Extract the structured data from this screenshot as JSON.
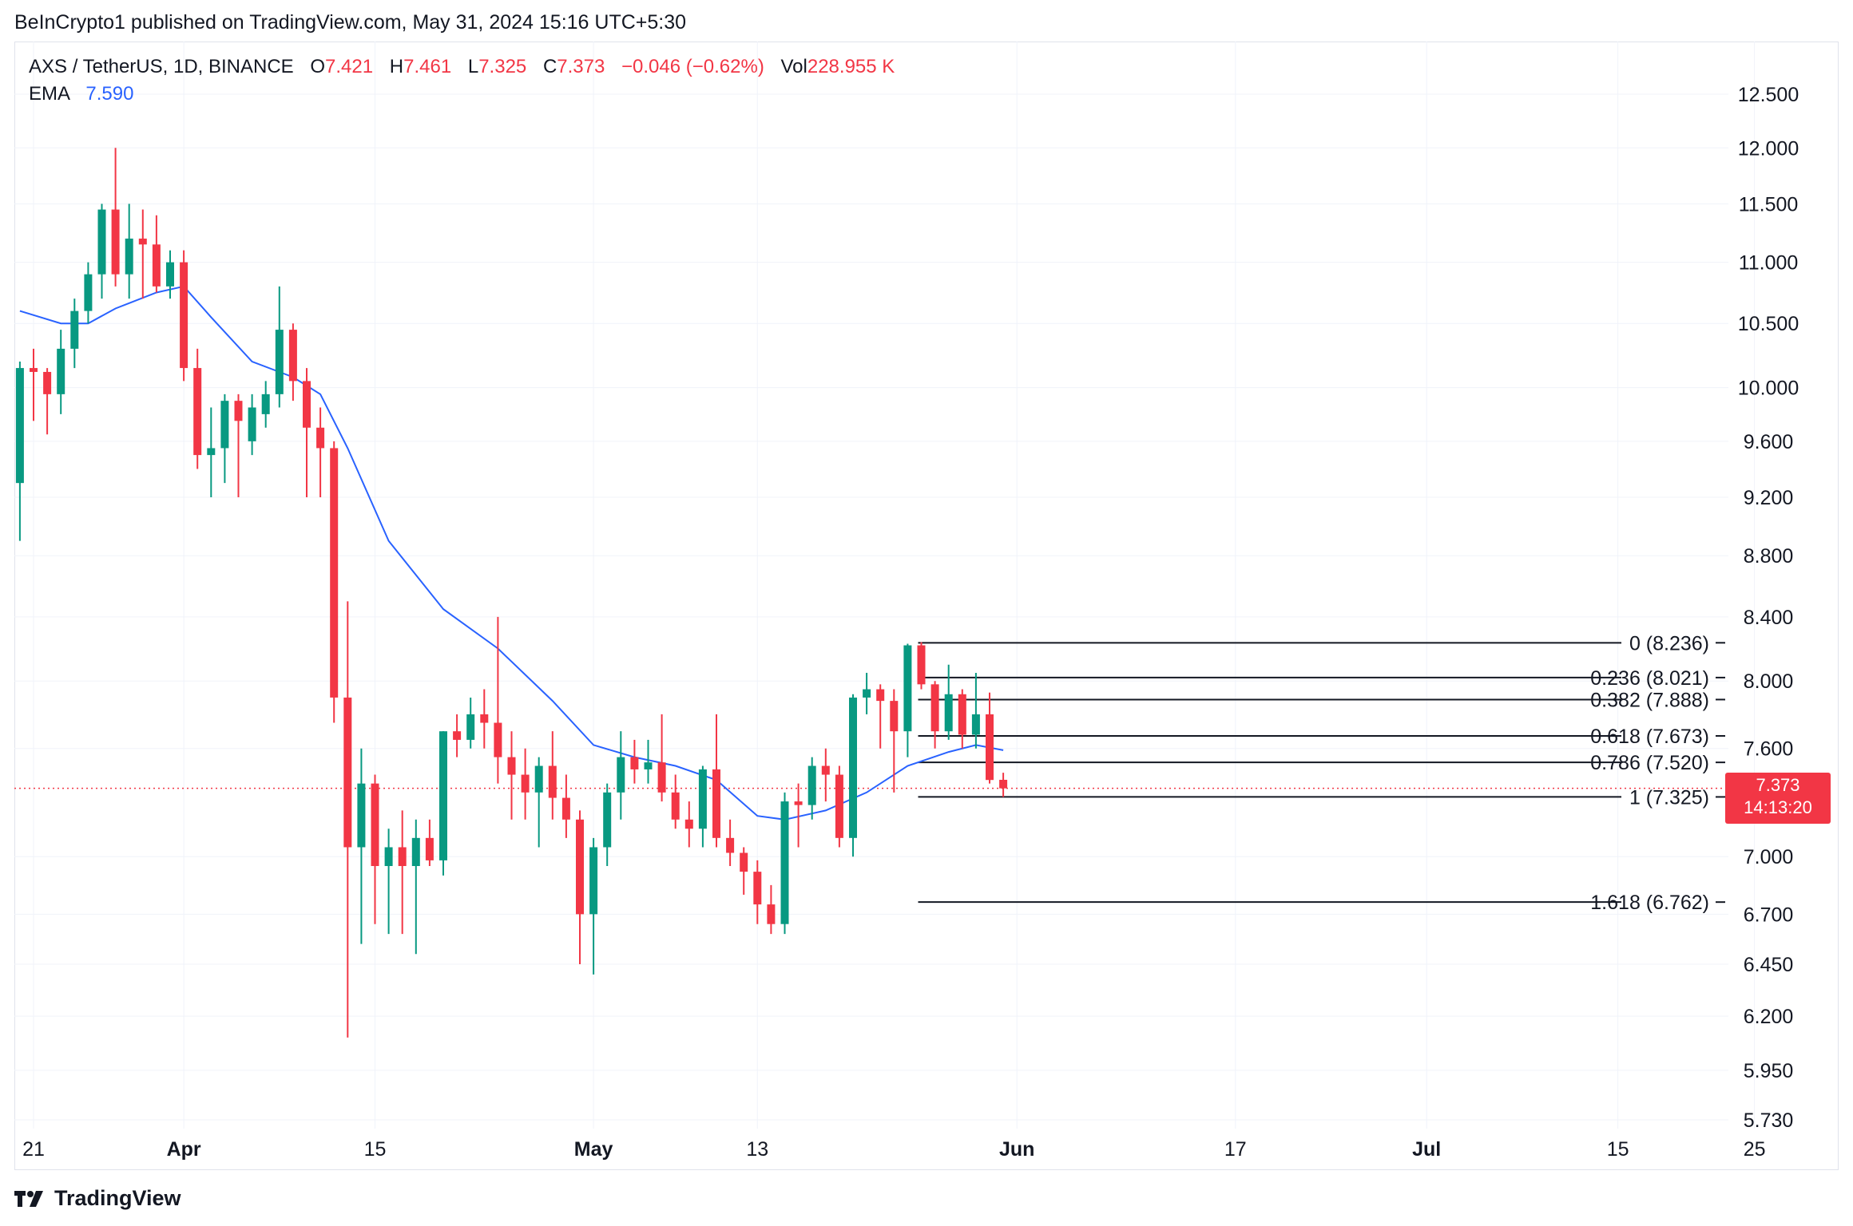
{
  "header": {
    "publisher_line": "BeInCrypto1 published on TradingView.com, May 31, 2024 15:16 UTC+5:30"
  },
  "legend": {
    "symbol": "AXS / TetherUS, 1D, BINANCE",
    "open_label": "O",
    "open_value": "7.421",
    "high_label": "H",
    "high_value": "7.461",
    "low_label": "L",
    "low_value": "7.325",
    "close_label": "C",
    "close_value": "7.373",
    "change": "−0.046 (−0.62%)",
    "vol_label": "Vol",
    "vol_value": "228.955 K",
    "ema_label": "EMA",
    "ema_value": "7.590"
  },
  "price_badge": {
    "price": "7.373",
    "countdown": "14:13:20"
  },
  "footer": {
    "brand": "TradingView"
  },
  "colors": {
    "up": "#089981",
    "down": "#f23645",
    "ema": "#2962ff",
    "grid": "#f0f3fa",
    "fib": "#131722"
  },
  "chart_data": {
    "type": "candlestick",
    "title": "AXS / TetherUS, 1D, BINANCE",
    "y_scale": "log",
    "y_ticks": [
      12.5,
      12.0,
      11.5,
      11.0,
      10.5,
      10.0,
      9.6,
      9.2,
      8.8,
      8.4,
      8.0,
      7.6,
      7.373,
      7.0,
      6.7,
      6.45,
      6.2,
      5.95,
      5.73
    ],
    "y_tick_labels": [
      "12.500",
      "12.000",
      "11.500",
      "11.000",
      "10.500",
      "10.000",
      "9.600",
      "9.200",
      "8.800",
      "8.400",
      "8.000",
      "7.600",
      "",
      "7.000",
      "6.700",
      "6.450",
      "6.200",
      "5.950",
      "5.730"
    ],
    "x_ticks": [
      {
        "date": "2024-03-21",
        "label": "21"
      },
      {
        "date": "2024-04-01",
        "label": "Apr"
      },
      {
        "date": "2024-04-15",
        "label": "15"
      },
      {
        "date": "2024-05-01",
        "label": "May"
      },
      {
        "date": "2024-05-13",
        "label": "13"
      },
      {
        "date": "2024-06-01",
        "label": "Jun"
      },
      {
        "date": "2024-06-17",
        "label": "17"
      },
      {
        "date": "2024-07-01",
        "label": "Jul"
      },
      {
        "date": "2024-07-15",
        "label": "15"
      },
      {
        "date": "2024-07-25",
        "label": "25"
      }
    ],
    "x_range": [
      "2024-03-20",
      "2024-07-28"
    ],
    "candles": [
      {
        "date": "2024-03-20",
        "o": 9.3,
        "h": 10.2,
        "l": 8.9,
        "c": 10.15
      },
      {
        "date": "2024-03-21",
        "o": 10.15,
        "h": 10.3,
        "l": 9.75,
        "c": 10.12
      },
      {
        "date": "2024-03-22",
        "o": 10.12,
        "h": 10.15,
        "l": 9.65,
        "c": 9.95
      },
      {
        "date": "2024-03-23",
        "o": 9.95,
        "h": 10.45,
        "l": 9.8,
        "c": 10.3
      },
      {
        "date": "2024-03-24",
        "o": 10.3,
        "h": 10.7,
        "l": 10.15,
        "c": 10.6
      },
      {
        "date": "2024-03-25",
        "o": 10.6,
        "h": 11.0,
        "l": 10.5,
        "c": 10.9
      },
      {
        "date": "2024-03-26",
        "o": 10.9,
        "h": 11.5,
        "l": 10.7,
        "c": 11.45
      },
      {
        "date": "2024-03-27",
        "o": 11.45,
        "h": 12.0,
        "l": 10.8,
        "c": 10.9
      },
      {
        "date": "2024-03-28",
        "o": 10.9,
        "h": 11.5,
        "l": 10.7,
        "c": 11.2
      },
      {
        "date": "2024-03-29",
        "o": 11.2,
        "h": 11.45,
        "l": 10.7,
        "c": 11.15
      },
      {
        "date": "2024-03-30",
        "o": 11.15,
        "h": 11.4,
        "l": 10.75,
        "c": 10.8
      },
      {
        "date": "2024-03-31",
        "o": 10.8,
        "h": 11.1,
        "l": 10.7,
        "c": 11.0
      },
      {
        "date": "2024-04-01",
        "o": 11.0,
        "h": 11.1,
        "l": 10.05,
        "c": 10.15
      },
      {
        "date": "2024-04-02",
        "o": 10.15,
        "h": 10.3,
        "l": 9.4,
        "c": 9.5
      },
      {
        "date": "2024-04-03",
        "o": 9.5,
        "h": 9.85,
        "l": 9.2,
        "c": 9.55
      },
      {
        "date": "2024-04-04",
        "o": 9.55,
        "h": 9.95,
        "l": 9.3,
        "c": 9.9
      },
      {
        "date": "2024-04-05",
        "o": 9.9,
        "h": 9.95,
        "l": 9.2,
        "c": 9.75
      },
      {
        "date": "2024-04-06",
        "o": 9.6,
        "h": 9.95,
        "l": 9.5,
        "c": 9.85
      },
      {
        "date": "2024-04-07",
        "o": 9.8,
        "h": 10.05,
        "l": 9.7,
        "c": 9.95
      },
      {
        "date": "2024-04-08",
        "o": 9.95,
        "h": 10.8,
        "l": 9.85,
        "c": 10.45
      },
      {
        "date": "2024-04-09",
        "o": 10.45,
        "h": 10.5,
        "l": 9.9,
        "c": 10.05
      },
      {
        "date": "2024-04-10",
        "o": 10.05,
        "h": 10.15,
        "l": 9.2,
        "c": 9.7
      },
      {
        "date": "2024-04-11",
        "o": 9.7,
        "h": 9.85,
        "l": 9.2,
        "c": 9.55
      },
      {
        "date": "2024-04-12",
        "o": 9.55,
        "h": 9.6,
        "l": 7.75,
        "c": 7.9
      },
      {
        "date": "2024-04-13",
        "o": 7.9,
        "h": 8.5,
        "l": 6.1,
        "c": 7.05
      },
      {
        "date": "2024-04-14",
        "o": 7.05,
        "h": 7.6,
        "l": 6.55,
        "c": 7.4
      },
      {
        "date": "2024-04-15",
        "o": 7.4,
        "h": 7.45,
        "l": 6.65,
        "c": 6.95
      },
      {
        "date": "2024-04-16",
        "o": 6.95,
        "h": 7.15,
        "l": 6.6,
        "c": 7.05
      },
      {
        "date": "2024-04-17",
        "o": 7.05,
        "h": 7.25,
        "l": 6.6,
        "c": 6.95
      },
      {
        "date": "2024-04-18",
        "o": 6.95,
        "h": 7.2,
        "l": 6.5,
        "c": 7.1
      },
      {
        "date": "2024-04-19",
        "o": 7.1,
        "h": 7.2,
        "l": 6.95,
        "c": 6.98
      },
      {
        "date": "2024-04-20",
        "o": 6.98,
        "h": 7.7,
        "l": 6.9,
        "c": 7.7
      },
      {
        "date": "2024-04-21",
        "o": 7.7,
        "h": 7.8,
        "l": 7.55,
        "c": 7.65
      },
      {
        "date": "2024-04-22",
        "o": 7.65,
        "h": 7.9,
        "l": 7.6,
        "c": 7.8
      },
      {
        "date": "2024-04-23",
        "o": 7.8,
        "h": 7.95,
        "l": 7.6,
        "c": 7.75
      },
      {
        "date": "2024-04-24",
        "o": 7.75,
        "h": 8.4,
        "l": 7.4,
        "c": 7.55
      },
      {
        "date": "2024-04-25",
        "o": 7.55,
        "h": 7.7,
        "l": 7.2,
        "c": 7.45
      },
      {
        "date": "2024-04-26",
        "o": 7.45,
        "h": 7.6,
        "l": 7.2,
        "c": 7.35
      },
      {
        "date": "2024-04-27",
        "o": 7.35,
        "h": 7.55,
        "l": 7.05,
        "c": 7.5
      },
      {
        "date": "2024-04-28",
        "o": 7.5,
        "h": 7.7,
        "l": 7.2,
        "c": 7.32
      },
      {
        "date": "2024-04-29",
        "o": 7.32,
        "h": 7.45,
        "l": 7.1,
        "c": 7.2
      },
      {
        "date": "2024-04-30",
        "o": 7.2,
        "h": 7.25,
        "l": 6.45,
        "c": 6.7
      },
      {
        "date": "2024-05-01",
        "o": 6.7,
        "h": 7.1,
        "l": 6.4,
        "c": 7.05
      },
      {
        "date": "2024-05-02",
        "o": 7.05,
        "h": 7.4,
        "l": 6.95,
        "c": 7.35
      },
      {
        "date": "2024-05-03",
        "o": 7.35,
        "h": 7.7,
        "l": 7.2,
        "c": 7.55
      },
      {
        "date": "2024-05-04",
        "o": 7.55,
        "h": 7.65,
        "l": 7.4,
        "c": 7.48
      },
      {
        "date": "2024-05-05",
        "o": 7.48,
        "h": 7.65,
        "l": 7.4,
        "c": 7.52
      },
      {
        "date": "2024-05-06",
        "o": 7.52,
        "h": 7.8,
        "l": 7.3,
        "c": 7.35
      },
      {
        "date": "2024-05-07",
        "o": 7.35,
        "h": 7.45,
        "l": 7.15,
        "c": 7.2
      },
      {
        "date": "2024-05-08",
        "o": 7.2,
        "h": 7.3,
        "l": 7.05,
        "c": 7.15
      },
      {
        "date": "2024-05-09",
        "o": 7.15,
        "h": 7.5,
        "l": 7.05,
        "c": 7.48
      },
      {
        "date": "2024-05-10",
        "o": 7.48,
        "h": 7.8,
        "l": 7.05,
        "c": 7.1
      },
      {
        "date": "2024-05-11",
        "o": 7.1,
        "h": 7.2,
        "l": 6.95,
        "c": 7.02
      },
      {
        "date": "2024-05-12",
        "o": 7.02,
        "h": 7.05,
        "l": 6.8,
        "c": 6.92
      },
      {
        "date": "2024-05-13",
        "o": 6.92,
        "h": 6.98,
        "l": 6.65,
        "c": 6.75
      },
      {
        "date": "2024-05-14",
        "o": 6.75,
        "h": 6.85,
        "l": 6.6,
        "c": 6.65
      },
      {
        "date": "2024-05-15",
        "o": 6.65,
        "h": 7.35,
        "l": 6.6,
        "c": 7.3
      },
      {
        "date": "2024-05-16",
        "o": 7.3,
        "h": 7.4,
        "l": 7.05,
        "c": 7.28
      },
      {
        "date": "2024-05-17",
        "o": 7.28,
        "h": 7.55,
        "l": 7.2,
        "c": 7.5
      },
      {
        "date": "2024-05-18",
        "o": 7.5,
        "h": 7.6,
        "l": 7.3,
        "c": 7.45
      },
      {
        "date": "2024-05-19",
        "o": 7.45,
        "h": 7.5,
        "l": 7.05,
        "c": 7.1
      },
      {
        "date": "2024-05-20",
        "o": 7.1,
        "h": 7.92,
        "l": 7.0,
        "c": 7.9
      },
      {
        "date": "2024-05-21",
        "o": 7.9,
        "h": 8.05,
        "l": 7.8,
        "c": 7.95
      },
      {
        "date": "2024-05-22",
        "o": 7.95,
        "h": 7.98,
        "l": 7.6,
        "c": 7.88
      },
      {
        "date": "2024-05-23",
        "o": 7.88,
        "h": 7.95,
        "l": 7.35,
        "c": 7.7
      },
      {
        "date": "2024-05-24",
        "o": 7.7,
        "h": 8.23,
        "l": 7.55,
        "c": 8.22
      },
      {
        "date": "2024-05-25",
        "o": 8.22,
        "h": 8.24,
        "l": 7.95,
        "c": 7.98
      },
      {
        "date": "2024-05-26",
        "o": 7.98,
        "h": 8.0,
        "l": 7.6,
        "c": 7.7
      },
      {
        "date": "2024-05-27",
        "o": 7.7,
        "h": 8.1,
        "l": 7.65,
        "c": 7.92
      },
      {
        "date": "2024-05-28",
        "o": 7.92,
        "h": 7.95,
        "l": 7.6,
        "c": 7.68
      },
      {
        "date": "2024-05-29",
        "o": 7.68,
        "h": 8.05,
        "l": 7.6,
        "c": 7.8
      },
      {
        "date": "2024-05-30",
        "o": 7.8,
        "h": 7.93,
        "l": 7.4,
        "c": 7.42
      },
      {
        "date": "2024-05-31",
        "o": 7.421,
        "h": 7.461,
        "l": 7.325,
        "c": 7.373
      }
    ],
    "ema": [
      {
        "date": "2024-03-20",
        "v": 10.6
      },
      {
        "date": "2024-03-23",
        "v": 10.5
      },
      {
        "date": "2024-03-25",
        "v": 10.5
      },
      {
        "date": "2024-03-27",
        "v": 10.62
      },
      {
        "date": "2024-03-30",
        "v": 10.75
      },
      {
        "date": "2024-04-01",
        "v": 10.8
      },
      {
        "date": "2024-04-03",
        "v": 10.55
      },
      {
        "date": "2024-04-06",
        "v": 10.2
      },
      {
        "date": "2024-04-09",
        "v": 10.08
      },
      {
        "date": "2024-04-11",
        "v": 9.95
      },
      {
        "date": "2024-04-13",
        "v": 9.55
      },
      {
        "date": "2024-04-16",
        "v": 8.9
      },
      {
        "date": "2024-04-20",
        "v": 8.45
      },
      {
        "date": "2024-04-24",
        "v": 8.2
      },
      {
        "date": "2024-04-28",
        "v": 7.88
      },
      {
        "date": "2024-05-01",
        "v": 7.62
      },
      {
        "date": "2024-05-04",
        "v": 7.55
      },
      {
        "date": "2024-05-07",
        "v": 7.5
      },
      {
        "date": "2024-05-10",
        "v": 7.42
      },
      {
        "date": "2024-05-13",
        "v": 7.22
      },
      {
        "date": "2024-05-15",
        "v": 7.2
      },
      {
        "date": "2024-05-18",
        "v": 7.25
      },
      {
        "date": "2024-05-21",
        "v": 7.35
      },
      {
        "date": "2024-05-24",
        "v": 7.5
      },
      {
        "date": "2024-05-27",
        "v": 7.58
      },
      {
        "date": "2024-05-29",
        "v": 7.62
      },
      {
        "date": "2024-05-31",
        "v": 7.59
      }
    ],
    "fibonacci": {
      "start_date": "2024-05-25",
      "levels": [
        {
          "ratio": "0",
          "price": 8.236,
          "label": "0 (8.236)"
        },
        {
          "ratio": "0.236",
          "price": 8.021,
          "label": "0.236 (8.021)"
        },
        {
          "ratio": "0.382",
          "price": 7.888,
          "label": "0.382 (7.888)"
        },
        {
          "ratio": "0.618",
          "price": 7.673,
          "label": "0.618 (7.673)"
        },
        {
          "ratio": "0.786",
          "price": 7.52,
          "label": "0.786 (7.520)"
        },
        {
          "ratio": "1",
          "price": 7.325,
          "label": "1 (7.325)"
        },
        {
          "ratio": "1.618",
          "price": 6.762,
          "label": "1.618 (6.762)"
        }
      ]
    },
    "last_price": 7.373,
    "grid": true
  }
}
